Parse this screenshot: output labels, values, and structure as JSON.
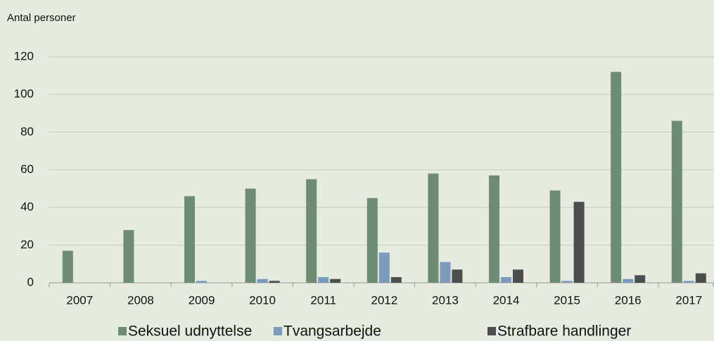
{
  "chart_data": {
    "type": "bar",
    "y_axis_label": "Antal personer",
    "categories": [
      "2007",
      "2008",
      "2009",
      "2010",
      "2011",
      "2012",
      "2013",
      "2014",
      "2015",
      "2016",
      "2017"
    ],
    "series": [
      {
        "name": "Seksuel udnyttelse",
        "color": "#6e8b74",
        "values": [
          17,
          28,
          46,
          50,
          55,
          45,
          58,
          57,
          49,
          112,
          86
        ]
      },
      {
        "name": "Tvangsarbejde",
        "color": "#7b9bbd",
        "values": [
          0,
          0,
          1,
          2,
          3,
          16,
          11,
          3,
          1,
          2,
          1
        ]
      },
      {
        "name": "Strafbare handlinger",
        "color": "#4d4d4d",
        "values": [
          0,
          0,
          0,
          1,
          2,
          3,
          7,
          7,
          43,
          4,
          5
        ]
      }
    ],
    "ylim": [
      0,
      120
    ],
    "yticks": [
      0,
      20,
      40,
      60,
      80,
      100,
      120
    ],
    "grid": true,
    "legend": "bottom"
  }
}
